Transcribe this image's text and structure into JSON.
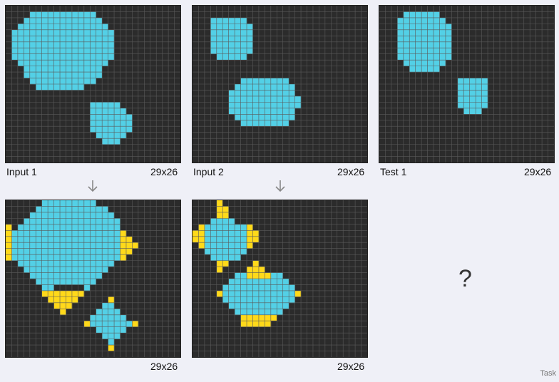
{
  "colors": {
    "background": "#2b2b2b",
    "gridline": "#5a5a5a",
    "shape": "#53d0e6",
    "highlight": "#ffd91a"
  },
  "panels": {
    "input1": {
      "label": "Input 1",
      "size": "29x26",
      "cols": 29,
      "rows": 26,
      "cyan_rows": [
        [
          1,
          4,
          14
        ],
        [
          2,
          3,
          15
        ],
        [
          3,
          2,
          16
        ],
        [
          4,
          1,
          17
        ],
        [
          5,
          1,
          17
        ],
        [
          6,
          1,
          17
        ],
        [
          7,
          1,
          17
        ],
        [
          8,
          1,
          17
        ],
        [
          9,
          2,
          16
        ],
        [
          10,
          3,
          15
        ],
        [
          11,
          3,
          15
        ],
        [
          12,
          4,
          14
        ],
        [
          13,
          5,
          12
        ],
        [
          16,
          14,
          18
        ],
        [
          17,
          14,
          19
        ],
        [
          18,
          14,
          20
        ],
        [
          19,
          14,
          20
        ],
        [
          20,
          14,
          20
        ],
        [
          21,
          15,
          19
        ],
        [
          22,
          16,
          18
        ]
      ],
      "yellow_rows": []
    },
    "output1": {
      "size": "29x26",
      "cols": 29,
      "rows": 26,
      "cyan_rows": [
        [
          0,
          6,
          14
        ],
        [
          1,
          5,
          16
        ],
        [
          2,
          4,
          17
        ],
        [
          3,
          3,
          18
        ],
        [
          4,
          2,
          18
        ],
        [
          5,
          1,
          18
        ],
        [
          6,
          1,
          18
        ],
        [
          7,
          1,
          18
        ],
        [
          8,
          1,
          18
        ],
        [
          9,
          1,
          18
        ],
        [
          10,
          2,
          17
        ],
        [
          11,
          3,
          16
        ],
        [
          12,
          4,
          15
        ],
        [
          13,
          5,
          14
        ],
        [
          14,
          6,
          7
        ],
        [
          14,
          13,
          13
        ],
        [
          17,
          16,
          17
        ],
        [
          18,
          15,
          18
        ],
        [
          19,
          14,
          19
        ],
        [
          20,
          14,
          20
        ],
        [
          21,
          15,
          19
        ],
        [
          22,
          16,
          18
        ],
        [
          23,
          17,
          17
        ]
      ],
      "yellow_rows": [
        [
          4,
          0,
          0
        ],
        [
          5,
          0,
          0
        ],
        [
          6,
          0,
          0
        ],
        [
          7,
          0,
          0
        ],
        [
          8,
          0,
          0
        ],
        [
          9,
          0,
          0
        ],
        [
          5,
          19,
          19
        ],
        [
          6,
          19,
          20
        ],
        [
          7,
          19,
          21
        ],
        [
          8,
          19,
          20
        ],
        [
          9,
          19,
          19
        ],
        [
          15,
          6,
          12
        ],
        [
          16,
          7,
          11
        ],
        [
          17,
          8,
          10
        ],
        [
          18,
          9,
          9
        ],
        [
          16,
          17,
          17
        ],
        [
          20,
          13,
          13
        ],
        [
          20,
          21,
          21
        ],
        [
          24,
          17,
          17
        ]
      ]
    },
    "input2": {
      "label": "Input 2",
      "size": "29x26",
      "cols": 29,
      "rows": 26,
      "cyan_rows": [
        [
          2,
          3,
          8
        ],
        [
          3,
          3,
          9
        ],
        [
          4,
          3,
          9
        ],
        [
          5,
          3,
          9
        ],
        [
          6,
          3,
          9
        ],
        [
          7,
          3,
          9
        ],
        [
          8,
          4,
          8
        ],
        [
          12,
          8,
          15
        ],
        [
          13,
          7,
          16
        ],
        [
          14,
          6,
          16
        ],
        [
          15,
          6,
          17
        ],
        [
          16,
          6,
          17
        ],
        [
          17,
          6,
          16
        ],
        [
          18,
          7,
          16
        ],
        [
          19,
          8,
          15
        ]
      ],
      "yellow_rows": []
    },
    "output2": {
      "size": "29x26",
      "cols": 29,
      "rows": 26,
      "cyan_rows": [
        [
          3,
          3,
          6
        ],
        [
          4,
          2,
          8
        ],
        [
          5,
          2,
          8
        ],
        [
          6,
          2,
          8
        ],
        [
          7,
          2,
          8
        ],
        [
          8,
          2,
          8
        ],
        [
          9,
          3,
          7
        ],
        [
          12,
          7,
          14
        ],
        [
          13,
          6,
          15
        ],
        [
          14,
          5,
          16
        ],
        [
          15,
          5,
          16
        ],
        [
          16,
          5,
          16
        ],
        [
          17,
          6,
          15
        ],
        [
          18,
          7,
          14
        ]
      ],
      "yellow_rows": [
        [
          0,
          4,
          4
        ],
        [
          1,
          4,
          5
        ],
        [
          2,
          4,
          5
        ],
        [
          4,
          1,
          1
        ],
        [
          5,
          0,
          1
        ],
        [
          6,
          0,
          1
        ],
        [
          7,
          1,
          1
        ],
        [
          4,
          9,
          9
        ],
        [
          5,
          9,
          10
        ],
        [
          6,
          9,
          10
        ],
        [
          7,
          9,
          9
        ],
        [
          10,
          4,
          5
        ],
        [
          11,
          4,
          4
        ],
        [
          10,
          10,
          10
        ],
        [
          11,
          9,
          11
        ],
        [
          12,
          9,
          12
        ],
        [
          15,
          4,
          4
        ],
        [
          15,
          17,
          17
        ],
        [
          19,
          8,
          13
        ],
        [
          20,
          8,
          12
        ]
      ]
    },
    "test1": {
      "label": "Test 1",
      "size": "29x26",
      "cols": 29,
      "rows": 26,
      "cyan_rows": [
        [
          1,
          4,
          9
        ],
        [
          2,
          3,
          10
        ],
        [
          3,
          3,
          11
        ],
        [
          4,
          3,
          11
        ],
        [
          5,
          3,
          11
        ],
        [
          6,
          3,
          11
        ],
        [
          7,
          3,
          11
        ],
        [
          8,
          3,
          11
        ],
        [
          9,
          4,
          10
        ],
        [
          10,
          5,
          9
        ],
        [
          12,
          13,
          17
        ],
        [
          13,
          13,
          17
        ],
        [
          14,
          13,
          17
        ],
        [
          15,
          13,
          17
        ],
        [
          16,
          13,
          17
        ],
        [
          17,
          14,
          16
        ]
      ],
      "yellow_rows": []
    }
  },
  "question_mark": "?",
  "footer_text": "Task"
}
